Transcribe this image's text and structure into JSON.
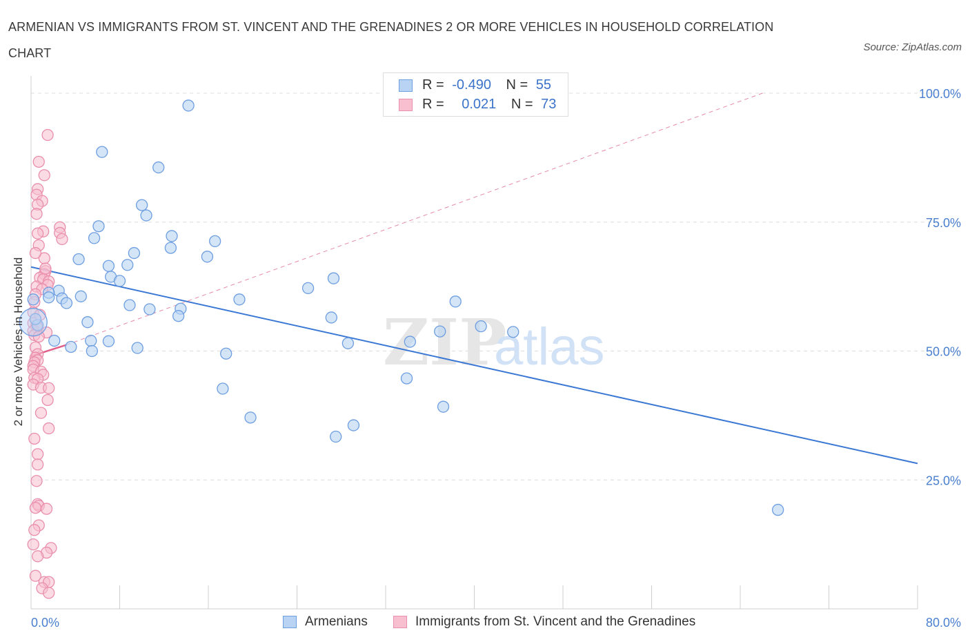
{
  "title": "ARMENIAN VS IMMIGRANTS FROM ST. VINCENT AND THE GRENADINES 2 OR MORE VEHICLES IN HOUSEHOLD CORRELATION CHART",
  "source": "Source: ZipAtlas.com",
  "watermark": {
    "zip": "ZIP",
    "atlas": "atlas"
  },
  "legend": {
    "series1": {
      "r_label": "R =",
      "r_value": "-0.490",
      "n_label": "N =",
      "n_value": "55"
    },
    "series2": {
      "r_label": "R =",
      "r_value": "0.021",
      "n_label": "N =",
      "n_value": "73"
    }
  },
  "colors": {
    "blue": "#3a78d4",
    "blue_fill": "#b9d3f4",
    "pink": "#e0608a",
    "pink_fill": "#f7bfd0",
    "tick": "#4a7fcf",
    "grid": "#dcdcdc"
  },
  "chart_data": {
    "type": "scatter",
    "title": "ARMENIAN VS IMMIGRANTS FROM ST. VINCENT AND THE GRENADINES 2 OR MORE VEHICLES IN HOUSEHOLD CORRELATION CHART",
    "xlabel": "",
    "ylabel": "2 or more Vehicles in Household",
    "xlim": [
      0,
      80
    ],
    "ylim": [
      0,
      100
    ],
    "x_tick_labels": [
      "0.0%",
      "80.0%"
    ],
    "y_ticks": [
      25,
      50,
      75,
      100
    ],
    "y_tick_labels": [
      "25.0%",
      "50.0%",
      "75.0%",
      "100.0%"
    ],
    "grid": true,
    "legend_position": "top-center",
    "series": [
      {
        "name": "Armenians",
        "color": "#3a78d4",
        "trend": [
          [
            0,
            66.3
          ],
          [
            80,
            28.2
          ]
        ],
        "points": [
          [
            14.2,
            97.6
          ],
          [
            6.4,
            88.6
          ],
          [
            11.5,
            85.6
          ],
          [
            10.0,
            78.3
          ],
          [
            10.4,
            76.3
          ],
          [
            6.1,
            74.2
          ],
          [
            12.7,
            72.3
          ],
          [
            5.7,
            71.9
          ],
          [
            16.6,
            71.3
          ],
          [
            12.6,
            70.0
          ],
          [
            9.3,
            69.0
          ],
          [
            4.3,
            67.8
          ],
          [
            15.9,
            68.3
          ],
          [
            7.0,
            66.5
          ],
          [
            8.7,
            66.7
          ],
          [
            7.2,
            64.4
          ],
          [
            8.0,
            63.6
          ],
          [
            27.3,
            64.1
          ],
          [
            25.0,
            62.2
          ],
          [
            2.5,
            61.7
          ],
          [
            1.6,
            61.3
          ],
          [
            1.6,
            60.4
          ],
          [
            2.8,
            60.2
          ],
          [
            4.5,
            60.6
          ],
          [
            3.2,
            59.3
          ],
          [
            18.8,
            60.0
          ],
          [
            38.3,
            59.6
          ],
          [
            8.9,
            58.9
          ],
          [
            10.7,
            58.1
          ],
          [
            13.5,
            58.2
          ],
          [
            13.3,
            56.8
          ],
          [
            27.1,
            56.5
          ],
          [
            5.1,
            55.6
          ],
          [
            0.6,
            55.0
          ],
          [
            40.6,
            54.8
          ],
          [
            36.9,
            53.8
          ],
          [
            43.5,
            53.7
          ],
          [
            2.1,
            52.0
          ],
          [
            5.4,
            52.0
          ],
          [
            7.0,
            51.9
          ],
          [
            28.6,
            51.5
          ],
          [
            34.2,
            51.8
          ],
          [
            3.6,
            50.8
          ],
          [
            9.6,
            50.6
          ],
          [
            5.5,
            50.0
          ],
          [
            17.6,
            49.5
          ],
          [
            33.9,
            44.7
          ],
          [
            17.3,
            42.7
          ],
          [
            37.2,
            39.2
          ],
          [
            19.8,
            37.1
          ],
          [
            29.1,
            35.6
          ],
          [
            27.5,
            33.4
          ],
          [
            67.4,
            19.2
          ],
          [
            0.2,
            60.0
          ],
          [
            0.4,
            56.2
          ]
        ]
      },
      {
        "name": "Immigrants from St. Vincent and the Grenadines",
        "color": "#e0608a",
        "trend": [
          [
            0,
            49.0
          ],
          [
            3.2,
            51.2
          ]
        ],
        "trend_dashed": [
          [
            3.2,
            51.2
          ],
          [
            66,
            100
          ]
        ],
        "points": [
          [
            1.5,
            91.9
          ],
          [
            0.7,
            86.7
          ],
          [
            1.2,
            84.1
          ],
          [
            0.6,
            81.4
          ],
          [
            0.5,
            80.3
          ],
          [
            1.0,
            79.1
          ],
          [
            0.6,
            78.4
          ],
          [
            0.5,
            76.6
          ],
          [
            2.6,
            74.0
          ],
          [
            1.1,
            73.2
          ],
          [
            0.6,
            72.8
          ],
          [
            2.6,
            72.9
          ],
          [
            2.8,
            71.7
          ],
          [
            0.7,
            70.5
          ],
          [
            1.2,
            68.0
          ],
          [
            1.3,
            65.5
          ],
          [
            1.2,
            64.9
          ],
          [
            0.8,
            64.2
          ],
          [
            1.1,
            63.9
          ],
          [
            1.6,
            63.5
          ],
          [
            1.5,
            62.8
          ],
          [
            0.5,
            62.5
          ],
          [
            1.0,
            62.0
          ],
          [
            0.4,
            61.0
          ],
          [
            0.3,
            59.5
          ],
          [
            0.2,
            57.5
          ],
          [
            0.4,
            56.2
          ],
          [
            0.2,
            55.4
          ],
          [
            0.5,
            55.0
          ],
          [
            0.6,
            54.4
          ],
          [
            0.2,
            53.9
          ],
          [
            1.4,
            53.6
          ],
          [
            0.3,
            53.1
          ],
          [
            0.7,
            52.8
          ],
          [
            0.4,
            50.7
          ],
          [
            0.6,
            49.4
          ],
          [
            0.4,
            48.7
          ],
          [
            0.6,
            48.2
          ],
          [
            0.3,
            47.8
          ],
          [
            0.2,
            47.1
          ],
          [
            0.2,
            46.4
          ],
          [
            0.9,
            46.0
          ],
          [
            1.1,
            45.4
          ],
          [
            0.3,
            44.8
          ],
          [
            0.6,
            44.6
          ],
          [
            0.2,
            43.5
          ],
          [
            0.9,
            42.9
          ],
          [
            1.6,
            42.8
          ],
          [
            1.5,
            40.5
          ],
          [
            0.9,
            38.0
          ],
          [
            1.6,
            35.0
          ],
          [
            0.6,
            30.0
          ],
          [
            0.6,
            28.0
          ],
          [
            0.6,
            20.3
          ],
          [
            0.7,
            20.0
          ],
          [
            1.4,
            19.4
          ],
          [
            0.4,
            19.6
          ],
          [
            0.7,
            16.2
          ],
          [
            0.3,
            15.3
          ],
          [
            1.8,
            11.8
          ],
          [
            1.4,
            10.9
          ],
          [
            0.6,
            10.2
          ],
          [
            0.4,
            6.4
          ],
          [
            1.2,
            5.2
          ],
          [
            1.6,
            5.2
          ],
          [
            1.0,
            4.0
          ],
          [
            1.6,
            3.1
          ],
          [
            0.2,
            12.5
          ],
          [
            0.5,
            24.8
          ],
          [
            0.3,
            33.0
          ],
          [
            0.8,
            57.0
          ],
          [
            1.3,
            66.0
          ],
          [
            0.4,
            69.0
          ]
        ]
      }
    ]
  }
}
